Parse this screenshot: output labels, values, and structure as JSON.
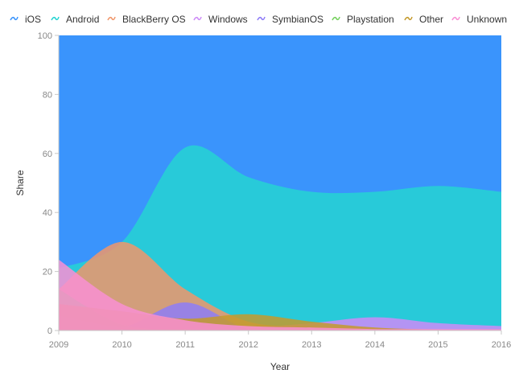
{
  "chart_data": {
    "type": "area",
    "xlabel": "Year",
    "ylabel": "Share",
    "xlim": [
      2009,
      2016
    ],
    "ylim": [
      0,
      100
    ],
    "x": [
      2009,
      2010,
      2011,
      2012,
      2013,
      2014,
      2015,
      2016
    ],
    "x_tick_labels": [
      "2009",
      "2010",
      "2011",
      "2012",
      "2013",
      "2014",
      "2015",
      "2016"
    ],
    "y_ticks": [
      0,
      20,
      40,
      60,
      80,
      100
    ],
    "y_tick_labels": [
      "0",
      "20",
      "40",
      "60",
      "80",
      "100"
    ],
    "grid": false,
    "legend_position": "top",
    "series": [
      {
        "name": "iOS",
        "color": "#3a94fc",
        "values": [
          100,
          100,
          100,
          100,
          100,
          100,
          100,
          100
        ]
      },
      {
        "name": "Android",
        "color": "#26d4d2",
        "values": [
          21,
          30,
          62,
          52,
          47,
          47,
          49,
          47
        ]
      },
      {
        "name": "BlackBerry OS",
        "color": "#f0966a",
        "values": [
          14,
          30,
          14,
          3,
          1.5,
          0.8,
          0.5,
          0.3
        ]
      },
      {
        "name": "Windows",
        "color": "#cd8bf7",
        "values": [
          5,
          1,
          1,
          1,
          2.5,
          4.5,
          2.5,
          1.5
        ]
      },
      {
        "name": "SymbianOS",
        "color": "#8e7cf7",
        "values": [
          2,
          1,
          9.5,
          0.5,
          0.2,
          0.1,
          0.1,
          0.1
        ]
      },
      {
        "name": "Playstation",
        "color": "#74d05c",
        "values": [
          14,
          2,
          0.5,
          0.3,
          0.2,
          0.1,
          0.1,
          0.1
        ]
      },
      {
        "name": "Other",
        "color": "#c49a2c",
        "values": [
          9,
          6.5,
          4,
          5.5,
          3,
          1,
          0.3,
          0.2
        ]
      },
      {
        "name": "Unknown",
        "color": "#f98fd4",
        "values": [
          24,
          9,
          3.5,
          1.5,
          1,
          0.5,
          0.5,
          0.5
        ]
      }
    ]
  }
}
